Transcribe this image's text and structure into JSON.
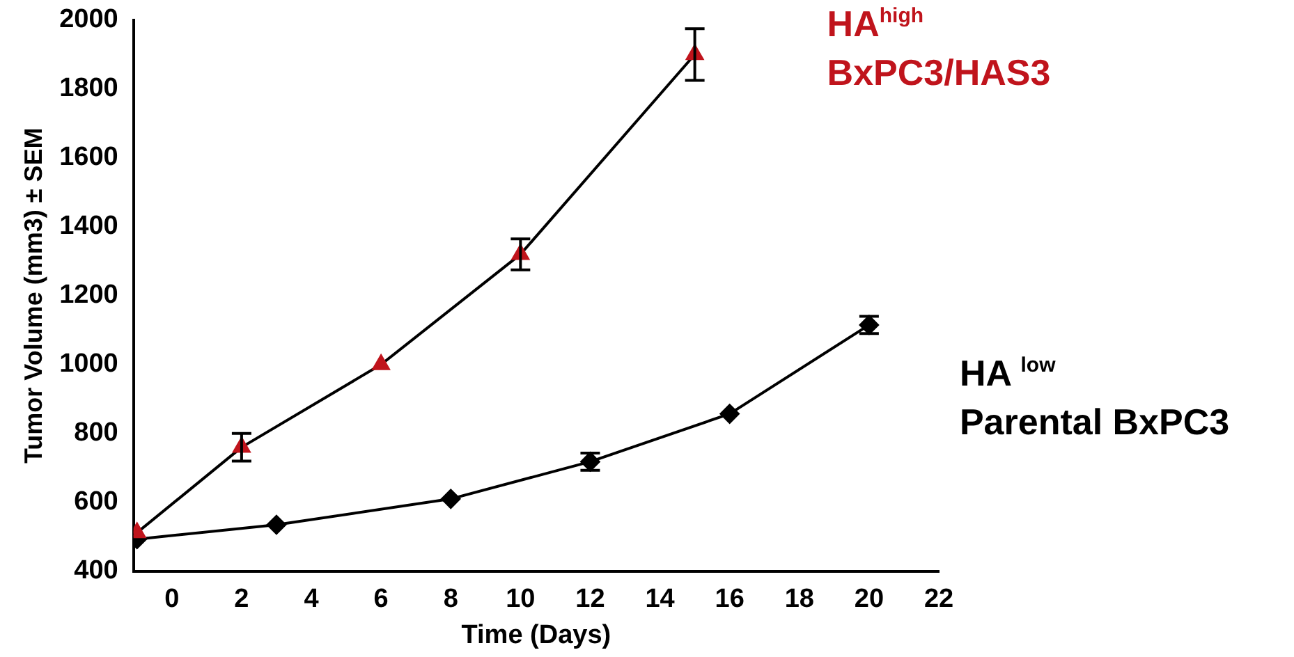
{
  "chart_data": {
    "type": "line",
    "xlabel": "Time (Days)",
    "ylabel": "Tumor Volume (mm3) ± SEM",
    "xlim": [
      -1.1,
      22
    ],
    "xticks": [
      0,
      2,
      4,
      6,
      8,
      10,
      12,
      14,
      16,
      18,
      20,
      22
    ],
    "ylim": [
      400,
      2000
    ],
    "yticks": [
      400,
      600,
      800,
      1000,
      1200,
      1400,
      1600,
      1800,
      2000
    ],
    "grid": false,
    "legend": false,
    "line_style": "solid",
    "series": [
      {
        "name": "HA$^{high}$ BxPC3/HAS3",
        "color": "#c0141c",
        "marker": "triangle",
        "x": [
          -1,
          2,
          6,
          10,
          15
        ],
        "values": [
          512,
          760,
          1000,
          1320,
          1900
        ],
        "errors": [
          null,
          40,
          null,
          45,
          75
        ]
      },
      {
        "name": "HA $^{low}$ Parental BxPC3",
        "color": "#000000",
        "marker": "diamond",
        "x": [
          -1,
          3,
          8,
          12,
          16,
          20
        ],
        "values": [
          493,
          535,
          610,
          718,
          857,
          1115
        ],
        "errors": [
          null,
          null,
          null,
          25,
          null,
          25
        ]
      }
    ]
  }
}
